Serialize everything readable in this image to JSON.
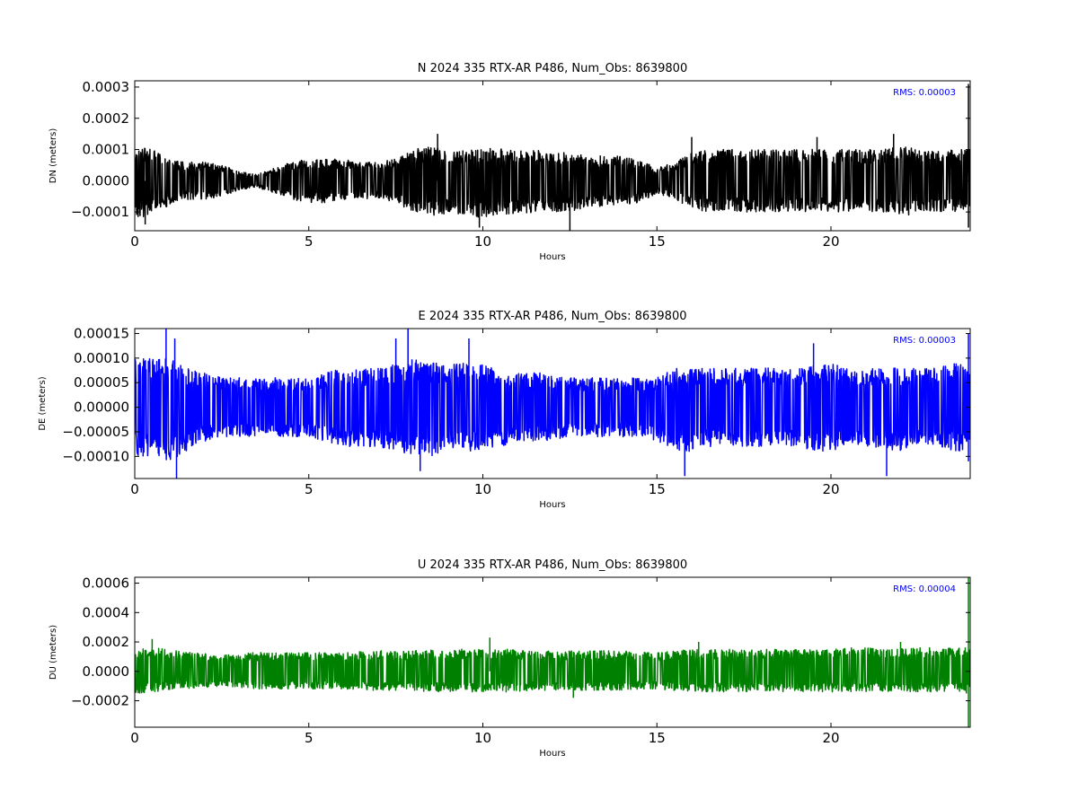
{
  "chart_data": [
    {
      "type": "line",
      "title": "N 2024 335 RTX-AR  P486, Num_Obs: 8639800",
      "xlabel": "Hours",
      "ylabel": "DN (meters)",
      "xlim": [
        0,
        24
      ],
      "ylim": [
        -0.00016,
        0.00032
      ],
      "x_ticks": [
        0,
        5,
        10,
        15,
        20
      ],
      "y_ticks": [
        -0.0001,
        0.0,
        0.0001,
        0.0002,
        0.0003
      ],
      "y_tick_labels": [
        "−0.0001",
        "0.0000",
        "0.0001",
        "0.0002",
        "0.0003"
      ],
      "annotation": "RMS:  0.00003",
      "annotation_color": "#0000ff",
      "line_color": "#000000",
      "grid": false,
      "series": [
        {
          "x": [
            0,
            0.5,
            1,
            1.5,
            2,
            2.5,
            3,
            3.5,
            4,
            4.5,
            5,
            5.5,
            6,
            6.5,
            7,
            7.5,
            8,
            8.5,
            9,
            9.5,
            10,
            10.5,
            11,
            11.5,
            12,
            12.5,
            13,
            13.5,
            14,
            14.5,
            15,
            15.5,
            16,
            16.5,
            17,
            17.5,
            18,
            18.5,
            19,
            19.5,
            20,
            20.5,
            21,
            21.5,
            22,
            22.5,
            23,
            23.5,
            24
          ],
          "upper": [
            0.00011,
            0.0001,
            7e-05,
            6e-05,
            6e-05,
            5e-05,
            3e-05,
            2e-05,
            4e-05,
            6e-05,
            7e-05,
            7e-05,
            7e-05,
            6e-05,
            6e-05,
            7e-05,
            0.0001,
            0.00011,
            0.0001,
            0.0001,
            0.0001,
            0.00011,
            0.0001,
            0.0001,
            9e-05,
            9e-05,
            8e-05,
            8e-05,
            8e-05,
            7e-05,
            4e-05,
            6e-05,
            9e-05,
            0.0001,
            0.0001,
            0.0001,
            0.0001,
            0.0001,
            0.0001,
            0.0001,
            0.0001,
            0.0001,
            0.0001,
            0.0001,
            0.00011,
            0.00011,
            0.0001,
            0.0001,
            0.0001
          ],
          "lower": [
            -0.00012,
            -0.00011,
            -8e-05,
            -6e-05,
            -6e-05,
            -5e-05,
            -3e-05,
            -2e-05,
            -4e-05,
            -6e-05,
            -7e-05,
            -7e-05,
            -7e-05,
            -6e-05,
            -6e-05,
            -7e-05,
            -0.0001,
            -0.00011,
            -0.00011,
            -0.00011,
            -0.00012,
            -0.00011,
            -0.00011,
            -0.0001,
            -0.0001,
            -0.0001,
            -9e-05,
            -8e-05,
            -8e-05,
            -7e-05,
            -4e-05,
            -6e-05,
            -9e-05,
            -0.0001,
            -0.0001,
            -0.0001,
            -0.0001,
            -0.0001,
            -0.0001,
            -0.0001,
            -0.0001,
            -0.0001,
            -0.0001,
            -0.0001,
            -0.00011,
            -0.00011,
            -0.0001,
            -0.0001,
            -0.0001
          ],
          "spikes": [
            [
              0.3,
              -0.00014
            ],
            [
              8.7,
              0.00015
            ],
            [
              9.9,
              -0.00015
            ],
            [
              12.5,
              -0.00016
            ],
            [
              16.0,
              0.00014
            ],
            [
              19.6,
              0.00014
            ],
            [
              21.8,
              0.00015
            ],
            [
              23.95,
              0.00031
            ],
            [
              23.95,
              -0.00015
            ]
          ]
        }
      ]
    },
    {
      "type": "line",
      "title": "E 2024 335 RTX-AR  P486, Num_Obs: 8639800",
      "xlabel": "Hours",
      "ylabel": "DE (meters)",
      "xlim": [
        0,
        24
      ],
      "ylim": [
        -0.000145,
        0.00016
      ],
      "x_ticks": [
        0,
        5,
        10,
        15,
        20
      ],
      "y_ticks": [
        -0.0001,
        -5e-05,
        0.0,
        5e-05,
        0.0001,
        0.00015
      ],
      "y_tick_labels": [
        "−0.00010",
        "−0.00005",
        "0.00000",
        "0.00005",
        "0.00010",
        "0.00015"
      ],
      "annotation": "RMS:  0.00003",
      "annotation_color": "#0000ff",
      "line_color": "#0000ff",
      "grid": false,
      "series": [
        {
          "x": [
            0,
            0.5,
            1,
            1.5,
            2,
            2.5,
            3,
            3.5,
            4,
            4.5,
            5,
            5.5,
            6,
            6.5,
            7,
            7.5,
            8,
            8.5,
            9,
            9.5,
            10,
            10.5,
            11,
            11.5,
            12,
            12.5,
            13,
            13.5,
            14,
            14.5,
            15,
            15.5,
            16,
            16.5,
            17,
            17.5,
            18,
            18.5,
            19,
            19.5,
            20,
            20.5,
            21,
            21.5,
            22,
            22.5,
            23,
            23.5,
            24
          ],
          "upper": [
            0.0001,
            0.0001,
            0.0001,
            8e-05,
            7e-05,
            6e-05,
            6e-05,
            6e-05,
            6e-05,
            6e-05,
            6e-05,
            7e-05,
            8e-05,
            8e-05,
            8e-05,
            9e-05,
            0.0001,
            9e-05,
            9e-05,
            9e-05,
            9e-05,
            8e-05,
            7e-05,
            7e-05,
            7e-05,
            6e-05,
            6e-05,
            6e-05,
            6e-05,
            6e-05,
            6e-05,
            8e-05,
            8e-05,
            8e-05,
            8e-05,
            8e-05,
            8e-05,
            8e-05,
            8e-05,
            9e-05,
            9e-05,
            8e-05,
            8e-05,
            8e-05,
            8e-05,
            8e-05,
            8e-05,
            9e-05,
            9e-05
          ],
          "lower": [
            -0.0001,
            -0.0001,
            -0.00011,
            -9e-05,
            -7e-05,
            -6e-05,
            -6e-05,
            -6e-05,
            -6e-05,
            -6e-05,
            -6e-05,
            -7e-05,
            -8e-05,
            -8e-05,
            -8e-05,
            -9e-05,
            -0.0001,
            -0.0001,
            -9e-05,
            -9e-05,
            -9e-05,
            -8e-05,
            -7e-05,
            -7e-05,
            -7e-05,
            -6e-05,
            -6e-05,
            -6e-05,
            -6e-05,
            -6e-05,
            -7e-05,
            -9e-05,
            -9e-05,
            -8e-05,
            -8e-05,
            -8e-05,
            -8e-05,
            -8e-05,
            -8e-05,
            -9e-05,
            -9e-05,
            -8e-05,
            -8e-05,
            -9e-05,
            -9e-05,
            -8e-05,
            -8e-05,
            -9e-05,
            -9e-05
          ],
          "spikes": [
            [
              0.9,
              0.00016
            ],
            [
              1.2,
              -0.000145
            ],
            [
              1.15,
              0.00014
            ],
            [
              7.85,
              0.00016
            ],
            [
              7.5,
              0.00014
            ],
            [
              8.2,
              -0.00013
            ],
            [
              9.6,
              0.00014
            ],
            [
              15.8,
              -0.00014
            ],
            [
              19.5,
              0.00013
            ],
            [
              21.6,
              -0.00014
            ],
            [
              23.95,
              0.00015
            ],
            [
              23.95,
              -0.00011
            ]
          ]
        }
      ]
    },
    {
      "type": "line",
      "title": "U 2024 335 RTX-AR  P486, Num_Obs: 8639800",
      "xlabel": "Hours",
      "ylabel": "DU (meters)",
      "xlim": [
        0,
        24
      ],
      "ylim": [
        -0.00038,
        0.00064
      ],
      "x_ticks": [
        0,
        5,
        10,
        15,
        20
      ],
      "y_ticks": [
        -0.0002,
        0.0,
        0.0002,
        0.0004,
        0.0006
      ],
      "y_tick_labels": [
        "−0.0002",
        "0.0000",
        "0.0002",
        "0.0004",
        "0.0006"
      ],
      "annotation": "RMS:  0.00004",
      "annotation_color": "#0000ff",
      "line_color": "#008000",
      "grid": false,
      "series": [
        {
          "x": [
            0,
            0.5,
            1,
            1.5,
            2,
            2.5,
            3,
            3.5,
            4,
            4.5,
            5,
            5.5,
            6,
            6.5,
            7,
            7.5,
            8,
            8.5,
            9,
            9.5,
            10,
            10.5,
            11,
            11.5,
            12,
            12.5,
            13,
            13.5,
            14,
            14.5,
            15,
            15.5,
            16,
            16.5,
            17,
            17.5,
            18,
            18.5,
            19,
            19.5,
            20,
            20.5,
            21,
            21.5,
            22,
            22.5,
            23,
            23.5,
            24
          ],
          "upper": [
            0.00016,
            0.00016,
            0.00015,
            0.00013,
            0.00012,
            0.00011,
            0.00012,
            0.00013,
            0.00013,
            0.00013,
            0.00013,
            0.00013,
            0.00013,
            0.00014,
            0.00014,
            0.00014,
            0.00014,
            0.00015,
            0.00015,
            0.00015,
            0.00015,
            0.00015,
            0.00015,
            0.00014,
            0.00014,
            0.00014,
            0.00014,
            0.00014,
            0.00014,
            0.00013,
            0.00013,
            0.00014,
            0.00015,
            0.00015,
            0.00015,
            0.00015,
            0.00015,
            0.00015,
            0.00015,
            0.00015,
            0.00015,
            0.00016,
            0.00016,
            0.00016,
            0.00016,
            0.00016,
            0.00016,
            0.00016,
            0.00016
          ],
          "lower": [
            -0.00015,
            -0.00014,
            -0.00013,
            -0.00012,
            -0.00011,
            -0.0001,
            -0.00011,
            -0.00012,
            -0.00012,
            -0.00012,
            -0.00012,
            -0.00012,
            -0.00012,
            -0.00013,
            -0.00013,
            -0.00013,
            -0.00013,
            -0.00014,
            -0.00014,
            -0.00014,
            -0.00014,
            -0.00014,
            -0.00014,
            -0.00013,
            -0.00013,
            -0.00013,
            -0.00013,
            -0.00013,
            -0.00013,
            -0.00012,
            -0.00012,
            -0.00013,
            -0.00014,
            -0.00014,
            -0.00014,
            -0.00014,
            -0.00014,
            -0.00014,
            -0.00014,
            -0.00014,
            -0.00014,
            -0.00014,
            -0.00014,
            -0.00014,
            -0.00014,
            -0.00014,
            -0.00014,
            -0.00014,
            -0.00015
          ],
          "spikes": [
            [
              0.5,
              0.00022
            ],
            [
              10.2,
              0.00023
            ],
            [
              12.6,
              -0.00018
            ],
            [
              16.2,
              0.0002
            ],
            [
              22.0,
              0.0002
            ],
            [
              23.95,
              0.00064
            ],
            [
              23.95,
              -0.00038
            ]
          ]
        }
      ]
    }
  ]
}
